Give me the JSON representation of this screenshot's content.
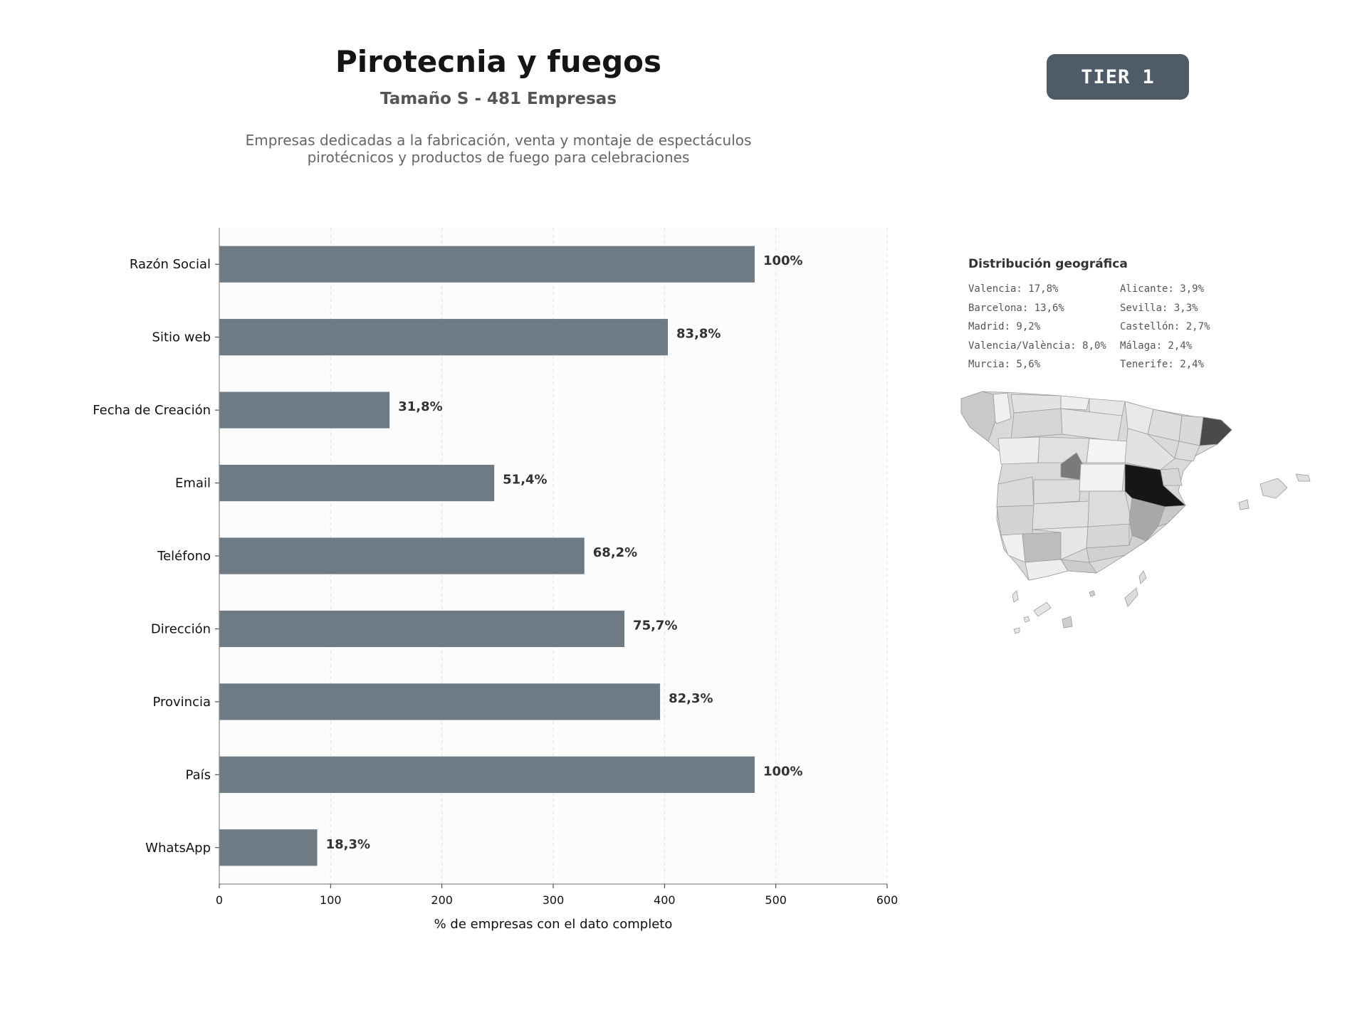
{
  "header": {
    "title": "Pirotecnia y fuegos",
    "subtitle": "Tamaño S - 481 Empresas",
    "description_lines": [
      "Empresas dedicadas a la fabricación, venta y montaje de espectáculos",
      "pirotécnicos y productos de fuego para celebraciones"
    ]
  },
  "badge": {
    "label": "TIER 1",
    "color": "#4f5b67"
  },
  "chart_data": {
    "type": "bar",
    "orientation": "horizontal",
    "categories": [
      "Razón Social",
      "Sitio web",
      "Fecha de Creación",
      "Email",
      "Teléfono",
      "Dirección",
      "Provincia",
      "País",
      "WhatsApp"
    ],
    "values": [
      481,
      403,
      153,
      247,
      328,
      364,
      396,
      481,
      88
    ],
    "value_labels": [
      "100%",
      "83,8%",
      "31,8%",
      "51,4%",
      "68,2%",
      "75,7%",
      "82,3%",
      "100%",
      "18,3%"
    ],
    "xlabel": "% de empresas con el dato completo",
    "xlim": [
      0,
      600
    ],
    "xticks": [
      0,
      100,
      200,
      300,
      400,
      500,
      600
    ],
    "grid": true,
    "bar_color": "#6e7a84"
  },
  "geo": {
    "title": "Distribución geográfica",
    "items": [
      "Valencia: 17,8%",
      "Barcelona: 13,6%",
      "Madrid: 9,2%",
      "Valencia/València: 8,0%",
      "Murcia: 5,6%",
      "Alicante: 3,9%",
      "Sevilla: 3,3%",
      "Castellón: 2,7%",
      "Málaga: 2,4%",
      "Tenerife: 2,4%"
    ]
  }
}
